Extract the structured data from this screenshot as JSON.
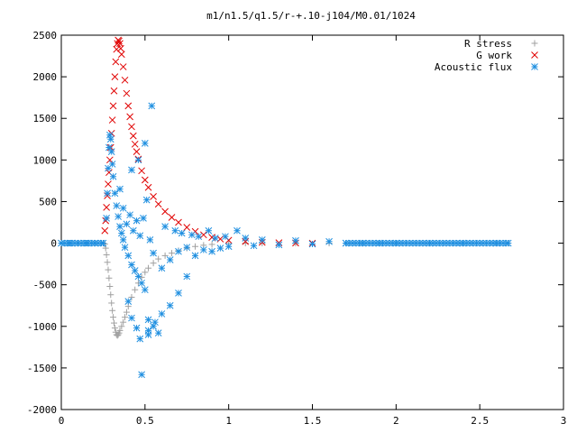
{
  "chart_data": {
    "type": "scatter",
    "title": "m1/n1.5/q1.5/r-+.10-j104/M0.01/1024",
    "xlabel": "",
    "ylabel": "",
    "xlim": [
      0,
      3
    ],
    "ylim": [
      -2000,
      2500
    ],
    "x_ticks": [
      {
        "value": 0,
        "label": "0"
      },
      {
        "value": 0.5,
        "label": "0.5"
      },
      {
        "value": 1,
        "label": "1"
      },
      {
        "value": 1.5,
        "label": "1.5"
      },
      {
        "value": 2,
        "label": "2"
      },
      {
        "value": 2.5,
        "label": "2.5"
      },
      {
        "value": 3,
        "label": "3"
      }
    ],
    "y_ticks": [
      {
        "value": 2500,
        "label": "2500"
      },
      {
        "value": 2000,
        "label": "2000"
      },
      {
        "value": 1500,
        "label": "1500"
      },
      {
        "value": 1000,
        "label": "1000"
      },
      {
        "value": 500,
        "label": "500"
      },
      {
        "value": 0,
        "label": "0"
      },
      {
        "value": -500,
        "label": "-500"
      },
      {
        "value": -1000,
        "label": "-1000"
      },
      {
        "value": -1500,
        "label": "-1500"
      },
      {
        "value": -2000,
        "label": "-2000"
      }
    ],
    "grid": false,
    "legend_position": "top-right",
    "series": [
      {
        "name": "R stress",
        "marker": "plus",
        "color": "#a0a0a0",
        "points": [
          [
            0.0,
            0
          ],
          [
            0.05,
            0
          ],
          [
            0.1,
            0
          ],
          [
            0.15,
            0
          ],
          [
            0.2,
            0
          ],
          [
            0.25,
            0
          ],
          [
            0.26,
            -10
          ],
          [
            0.265,
            -60
          ],
          [
            0.27,
            -140
          ],
          [
            0.275,
            -230
          ],
          [
            0.28,
            -320
          ],
          [
            0.285,
            -420
          ],
          [
            0.29,
            -520
          ],
          [
            0.295,
            -620
          ],
          [
            0.3,
            -720
          ],
          [
            0.305,
            -810
          ],
          [
            0.31,
            -890
          ],
          [
            0.315,
            -960
          ],
          [
            0.32,
            -1020
          ],
          [
            0.325,
            -1070
          ],
          [
            0.33,
            -1100
          ],
          [
            0.335,
            -1110
          ],
          [
            0.34,
            -1100
          ],
          [
            0.345,
            -1080
          ],
          [
            0.35,
            -1050
          ],
          [
            0.36,
            -1000
          ],
          [
            0.37,
            -950
          ],
          [
            0.38,
            -890
          ],
          [
            0.39,
            -830
          ],
          [
            0.4,
            -760
          ],
          [
            0.42,
            -650
          ],
          [
            0.44,
            -560
          ],
          [
            0.46,
            -480
          ],
          [
            0.48,
            -410
          ],
          [
            0.5,
            -350
          ],
          [
            0.52,
            -300
          ],
          [
            0.55,
            -240
          ],
          [
            0.58,
            -190
          ],
          [
            0.62,
            -150
          ],
          [
            0.66,
            -120
          ],
          [
            0.7,
            -90
          ],
          [
            0.75,
            -60
          ],
          [
            0.8,
            -40
          ],
          [
            0.85,
            -25
          ],
          [
            0.9,
            -15
          ],
          [
            1.0,
            -5
          ],
          [
            1.1,
            0
          ],
          [
            1.2,
            0
          ],
          [
            1.4,
            0
          ],
          [
            1.6,
            0
          ],
          [
            1.8,
            0
          ],
          [
            2.0,
            0
          ],
          [
            2.2,
            0
          ],
          [
            2.4,
            0
          ],
          [
            2.6,
            0
          ],
          [
            2.67,
            0
          ]
        ]
      },
      {
        "name": "G work",
        "marker": "cross",
        "color": "#e00000",
        "points": [
          [
            0.26,
            150
          ],
          [
            0.265,
            270
          ],
          [
            0.27,
            430
          ],
          [
            0.275,
            570
          ],
          [
            0.28,
            710
          ],
          [
            0.285,
            850
          ],
          [
            0.29,
            1000
          ],
          [
            0.295,
            1150
          ],
          [
            0.3,
            1320
          ],
          [
            0.305,
            1480
          ],
          [
            0.31,
            1650
          ],
          [
            0.315,
            1830
          ],
          [
            0.32,
            2000
          ],
          [
            0.325,
            2180
          ],
          [
            0.33,
            2330
          ],
          [
            0.335,
            2400
          ],
          [
            0.34,
            2440
          ],
          [
            0.345,
            2430
          ],
          [
            0.35,
            2400
          ],
          [
            0.355,
            2340
          ],
          [
            0.36,
            2270
          ],
          [
            0.37,
            2120
          ],
          [
            0.38,
            1960
          ],
          [
            0.39,
            1800
          ],
          [
            0.4,
            1650
          ],
          [
            0.41,
            1520
          ],
          [
            0.42,
            1400
          ],
          [
            0.43,
            1290
          ],
          [
            0.44,
            1190
          ],
          [
            0.45,
            1100
          ],
          [
            0.46,
            1010
          ],
          [
            0.48,
            870
          ],
          [
            0.5,
            760
          ],
          [
            0.52,
            670
          ],
          [
            0.55,
            560
          ],
          [
            0.58,
            470
          ],
          [
            0.62,
            380
          ],
          [
            0.66,
            310
          ],
          [
            0.7,
            250
          ],
          [
            0.75,
            190
          ],
          [
            0.8,
            140
          ],
          [
            0.85,
            100
          ],
          [
            0.9,
            70
          ],
          [
            0.95,
            50
          ],
          [
            1.0,
            35
          ],
          [
            1.1,
            20
          ],
          [
            1.2,
            10
          ],
          [
            1.3,
            5
          ],
          [
            1.4,
            2
          ],
          [
            1.5,
            0
          ]
        ]
      },
      {
        "name": "Acoustic flux",
        "marker": "star",
        "color": "#1f8fe0",
        "points": [
          [
            0.0,
            0
          ],
          [
            0.05,
            0
          ],
          [
            0.1,
            0
          ],
          [
            0.15,
            0
          ],
          [
            0.2,
            0
          ],
          [
            0.25,
            0
          ],
          [
            0.27,
            300
          ],
          [
            0.275,
            600
          ],
          [
            0.28,
            900
          ],
          [
            0.285,
            1150
          ],
          [
            0.29,
            1300
          ],
          [
            0.295,
            1250
          ],
          [
            0.3,
            1100
          ],
          [
            0.305,
            950
          ],
          [
            0.31,
            800
          ],
          [
            0.32,
            600
          ],
          [
            0.33,
            450
          ],
          [
            0.34,
            320
          ],
          [
            0.35,
            200
          ],
          [
            0.36,
            120
          ],
          [
            0.37,
            40
          ],
          [
            0.38,
            -50
          ],
          [
            0.4,
            -150
          ],
          [
            0.42,
            -260
          ],
          [
            0.44,
            -330
          ],
          [
            0.46,
            -400
          ],
          [
            0.48,
            -480
          ],
          [
            0.5,
            -560
          ],
          [
            0.35,
            650
          ],
          [
            0.37,
            420
          ],
          [
            0.39,
            230
          ],
          [
            0.41,
            340
          ],
          [
            0.43,
            150
          ],
          [
            0.45,
            270
          ],
          [
            0.47,
            90
          ],
          [
            0.49,
            300
          ],
          [
            0.51,
            520
          ],
          [
            0.53,
            40
          ],
          [
            0.55,
            -120
          ],
          [
            0.4,
            -700
          ],
          [
            0.42,
            -900
          ],
          [
            0.45,
            -1020
          ],
          [
            0.47,
            -1150
          ],
          [
            0.52,
            -1100
          ],
          [
            0.56,
            -950
          ],
          [
            0.58,
            -1080
          ],
          [
            0.52,
            -920
          ],
          [
            0.48,
            -1580
          ],
          [
            0.54,
            1650
          ],
          [
            0.5,
            1200
          ],
          [
            0.46,
            1000
          ],
          [
            0.42,
            880
          ],
          [
            0.52,
            -1050
          ],
          [
            0.55,
            -1000
          ],
          [
            0.6,
            -850
          ],
          [
            0.65,
            -750
          ],
          [
            0.7,
            -600
          ],
          [
            0.75,
            -400
          ],
          [
            0.6,
            -300
          ],
          [
            0.62,
            200
          ],
          [
            0.65,
            -200
          ],
          [
            0.68,
            150
          ],
          [
            0.7,
            -100
          ],
          [
            0.72,
            120
          ],
          [
            0.75,
            -50
          ],
          [
            0.78,
            100
          ],
          [
            0.8,
            -150
          ],
          [
            0.82,
            80
          ],
          [
            0.85,
            -80
          ],
          [
            0.88,
            150
          ],
          [
            0.9,
            -100
          ],
          [
            0.92,
            60
          ],
          [
            0.95,
            -60
          ],
          [
            0.98,
            80
          ],
          [
            1.0,
            -40
          ],
          [
            1.05,
            150
          ],
          [
            1.1,
            60
          ],
          [
            1.15,
            -30
          ],
          [
            1.2,
            40
          ],
          [
            1.3,
            -20
          ],
          [
            1.4,
            30
          ],
          [
            1.5,
            -10
          ],
          [
            1.6,
            20
          ],
          [
            1.7,
            0
          ],
          [
            1.8,
            0
          ],
          [
            1.9,
            0
          ],
          [
            2.0,
            0
          ],
          [
            2.2,
            0
          ],
          [
            2.4,
            0
          ],
          [
            2.6,
            0
          ],
          [
            2.67,
            0
          ]
        ]
      }
    ]
  }
}
